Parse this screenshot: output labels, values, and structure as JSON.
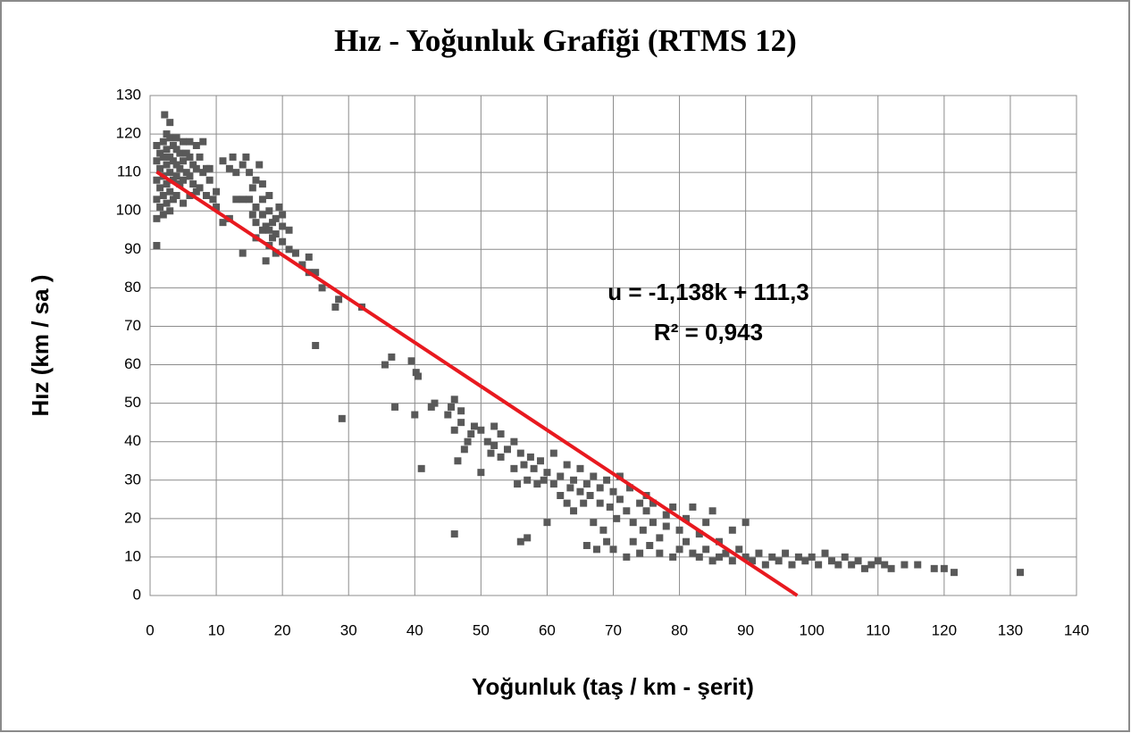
{
  "chart_data": {
    "type": "scatter",
    "title": "Hız - Yoğunluk Grafiği (RTMS 12)",
    "xlabel": "Yoğunluk (taş / km - şerit)",
    "ylabel": "Hız (km / sa )",
    "annotations": [
      "u = -1,138k + 111,3",
      "R² = 0,943"
    ],
    "color": "#595959",
    "x": [
      1,
      1,
      1,
      1,
      1,
      1,
      1.5,
      1.5,
      1.5,
      1.5,
      2,
      2,
      2,
      2,
      2,
      2.2,
      2.5,
      2.5,
      2.5,
      2.5,
      2.5,
      3,
      3,
      3,
      3,
      3,
      3,
      3.5,
      3.5,
      3.5,
      3.5,
      4,
      4,
      4,
      4,
      4,
      4.5,
      4.5,
      4.5,
      5,
      5,
      5,
      5,
      5.5,
      5.5,
      6,
      6,
      6,
      6,
      6.5,
      6.5,
      7,
      7,
      7,
      7.5,
      7.5,
      8,
      8,
      8.5,
      8.5,
      9,
      9,
      9.5,
      10,
      10,
      11,
      11,
      12,
      12,
      12.5,
      13,
      13,
      14,
      14,
      14,
      14.5,
      15,
      15,
      15.5,
      15.5,
      16,
      16,
      16,
      16,
      16.5,
      17,
      17,
      17,
      17,
      17.5,
      17.5,
      18,
      18,
      18,
      18,
      18.5,
      18.5,
      19,
      19,
      19,
      19.5,
      20,
      20,
      20,
      21,
      21,
      22,
      23,
      24,
      24,
      25,
      26,
      25,
      28,
      28.5,
      29,
      32,
      35.5,
      36.5,
      37,
      39.5,
      40,
      40.2,
      40.5,
      41,
      42.5,
      43,
      45,
      45.5,
      46,
      46,
      46,
      46.5,
      47,
      47,
      47.5,
      48,
      48.5,
      49,
      50,
      50,
      51,
      51.5,
      52,
      52,
      53,
      53,
      54,
      55,
      55,
      55.5,
      56,
      56,
      56.5,
      57,
      57,
      57.5,
      58,
      58.5,
      59,
      59.5,
      60,
      60,
      61,
      61,
      62,
      62,
      63,
      63,
      63.5,
      64,
      64,
      65,
      65,
      65.5,
      66,
      66,
      66.5,
      67,
      67,
      67.5,
      68,
      68,
      68.5,
      69,
      69,
      69.5,
      70,
      70,
      70.5,
      71,
      71,
      72,
      72,
      72.5,
      73,
      73,
      74,
      74,
      74.5,
      75,
      75,
      75.5,
      76,
      76,
      77,
      77,
      78,
      78,
      79,
      79,
      80,
      80,
      81,
      81,
      82,
      82,
      83,
      83,
      84,
      84,
      85,
      85,
      86,
      86,
      87,
      88,
      88,
      89,
      90,
      90,
      91,
      92,
      93,
      94,
      95,
      96,
      97,
      98,
      99,
      100,
      101,
      102,
      103,
      104,
      105,
      106,
      107,
      108,
      109,
      110,
      111,
      112,
      114,
      116,
      118.5,
      120,
      121.5,
      131.5
    ],
    "values": [
      91,
      98,
      103,
      108,
      113,
      117,
      101,
      106,
      111,
      115,
      99,
      104,
      109,
      114,
      118,
      125,
      102,
      107,
      112,
      116,
      120,
      100,
      105,
      110,
      114,
      119,
      123,
      103,
      108,
      113,
      117,
      104,
      109,
      112,
      116,
      119,
      107,
      111,
      115,
      102,
      108,
      113,
      118,
      110,
      115,
      104,
      109,
      114,
      118,
      107,
      112,
      105,
      111,
      117,
      106,
      114,
      110,
      118,
      104,
      111,
      108,
      111,
      103,
      105,
      101,
      97,
      113,
      98,
      111,
      114,
      110,
      103,
      89,
      103,
      112,
      114,
      103,
      110,
      99,
      106,
      93,
      97,
      101,
      108,
      112,
      95,
      99,
      103,
      107,
      96,
      87,
      91,
      95,
      100,
      104,
      93,
      97,
      89,
      94,
      98,
      101,
      92,
      96,
      99,
      90,
      95,
      89,
      86,
      84,
      88,
      84,
      80,
      65,
      75,
      77,
      46,
      75,
      60,
      62,
      49,
      61,
      47,
      58,
      57,
      33,
      49,
      50,
      47,
      49,
      51,
      43,
      16,
      35,
      45,
      48,
      38,
      40,
      42,
      44,
      32,
      43,
      40,
      37,
      44,
      39,
      42,
      36,
      38,
      40,
      33,
      29,
      37,
      14,
      34,
      30,
      15,
      36,
      33,
      29,
      35,
      30,
      32,
      19,
      37,
      29,
      31,
      26,
      34,
      24,
      28,
      30,
      22,
      33,
      27,
      24,
      13,
      29,
      26,
      19,
      31,
      12,
      24,
      28,
      17,
      30,
      14,
      23,
      27,
      12,
      20,
      31,
      25,
      22,
      10,
      28,
      19,
      14,
      24,
      11,
      17,
      22,
      26,
      13,
      19,
      24,
      15,
      11,
      21,
      18,
      10,
      23,
      17,
      12,
      20,
      14,
      11,
      23,
      16,
      10,
      19,
      12,
      22,
      9,
      14,
      10,
      11,
      17,
      9,
      12,
      19,
      10,
      9,
      11,
      8,
      10,
      9,
      11,
      8,
      10,
      9,
      10,
      8,
      11,
      9,
      8,
      10,
      8,
      9,
      7,
      8,
      9,
      8,
      7,
      8,
      8,
      7,
      7,
      6,
      6
    ],
    "trendline": {
      "color": "#e8191f",
      "x": [
        1,
        97.8
      ],
      "values": [
        110.162,
        0
      ]
    },
    "xlim": [
      0,
      140
    ],
    "xticks": [
      0,
      10,
      20,
      30,
      40,
      50,
      60,
      70,
      80,
      90,
      100,
      110,
      120,
      130,
      140
    ],
    "ylim": [
      0,
      130
    ],
    "yticks": [
      0,
      10,
      20,
      30,
      40,
      50,
      60,
      70,
      80,
      90,
      100,
      110,
      120,
      130
    ],
    "grid": true
  }
}
